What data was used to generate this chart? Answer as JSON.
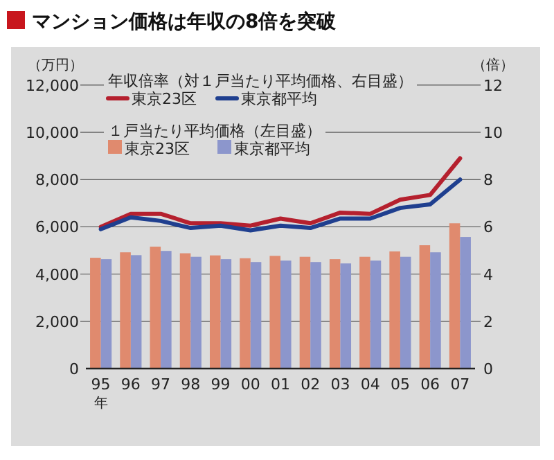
{
  "chart_data": {
    "type": "bar",
    "title": "マンション価格は年収の8倍を突破",
    "categories": [
      "95",
      "96",
      "97",
      "98",
      "99",
      "00",
      "01",
      "02",
      "03",
      "04",
      "05",
      "06",
      "07"
    ],
    "xlabel": "年",
    "ylabel": "（万円）",
    "y2label": "（倍）",
    "ylim": [
      0,
      12000
    ],
    "yticks": [
      {
        "value": 0,
        "label": "0"
      },
      {
        "value": 2000,
        "label": "2,000"
      },
      {
        "value": 4000,
        "label": "4,000"
      },
      {
        "value": 6000,
        "label": "6,000"
      },
      {
        "value": 8000,
        "label": "8,000"
      },
      {
        "value": 10000,
        "label": "10,000"
      },
      {
        "value": 12000,
        "label": "12,000"
      }
    ],
    "y2lim": [
      0,
      12
    ],
    "y2ticks": [
      0,
      2,
      4,
      6,
      8,
      10,
      12
    ],
    "grid": "y",
    "legend": "top left",
    "annotations": [
      "年収倍率（対１戸当たり平均価格、右目盛）",
      "１戸当たり平均価格（左目盛）"
    ],
    "series": [
      {
        "name": "東京23区",
        "type": "line",
        "axis": "y2",
        "color": "#b5202e",
        "values": [
          6.0,
          6.55,
          6.55,
          6.15,
          6.15,
          6.05,
          6.35,
          6.15,
          6.6,
          6.55,
          7.15,
          7.35,
          8.9
        ]
      },
      {
        "name": "東京都平均",
        "type": "line",
        "axis": "y2",
        "color": "#1f3f8f",
        "values": [
          5.9,
          6.4,
          6.25,
          5.95,
          6.05,
          5.85,
          6.05,
          5.95,
          6.35,
          6.35,
          6.8,
          6.95,
          8.0
        ]
      },
      {
        "name": "東京23区",
        "color": "#e08a6e",
        "values": [
          4690,
          4920,
          5160,
          4880,
          4790,
          4670,
          4770,
          4730,
          4630,
          4730,
          4960,
          5220,
          6150
        ]
      },
      {
        "name": "東京都平均",
        "color": "#8c96cc",
        "values": [
          4630,
          4800,
          4980,
          4730,
          4630,
          4510,
          4570,
          4510,
          4450,
          4570,
          4730,
          4920,
          5570
        ]
      }
    ]
  }
}
